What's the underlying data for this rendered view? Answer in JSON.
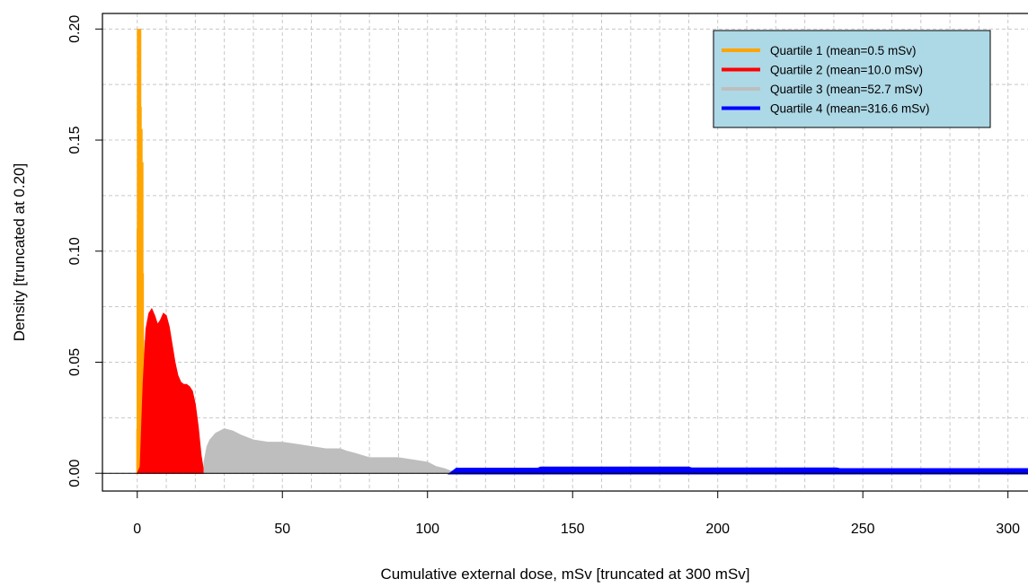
{
  "chart_data": {
    "type": "area",
    "xlabel": "Cumulative external dose, mSv [truncated at 300 mSv]",
    "ylabel": "Density [truncated at 0.20]",
    "xlim": [
      -12,
      310
    ],
    "ylim": [
      -0.008,
      0.207
    ],
    "x_ticks": [
      0,
      50,
      100,
      150,
      200,
      250,
      300
    ],
    "y_ticks": [
      0.0,
      0.05,
      0.1,
      0.15,
      0.2
    ],
    "x_tick_labels": [
      "0",
      "50",
      "100",
      "150",
      "200",
      "250",
      "300"
    ],
    "y_tick_labels": [
      "0.00",
      "0.05",
      "0.10",
      "0.15",
      "0.20"
    ],
    "grid": true,
    "grid_style": "dashed",
    "legend_position": "top-right",
    "legend_background": "#add8e6",
    "series": [
      {
        "name": "Quartile 1 (mean=0.5 mSv)",
        "color": "#ffa500",
        "style": "spike",
        "x": [
          0.0,
          0.1,
          0.2,
          0.3,
          0.45,
          0.6,
          0.75,
          0.9,
          1.05,
          1.2,
          1.35,
          1.5,
          1.65,
          1.8,
          1.95,
          2.1,
          2.3,
          2.5
        ],
        "y": [
          0.02,
          0.11,
          0.2,
          0.2,
          0.2,
          0.2,
          0.2,
          0.2,
          0.2,
          0.165,
          0.13,
          0.155,
          0.105,
          0.14,
          0.09,
          0.06,
          0.03,
          0.015
        ]
      },
      {
        "name": "Quartile 2 (mean=10.0 mSv)",
        "color": "#ff0000",
        "style": "area",
        "x": [
          0,
          1,
          2,
          3,
          4,
          5,
          6,
          7,
          8,
          9,
          10,
          11,
          12,
          13,
          14,
          15,
          16,
          17,
          18,
          19,
          20,
          21,
          22,
          23
        ],
        "y": [
          0.0,
          0.003,
          0.04,
          0.065,
          0.072,
          0.074,
          0.071,
          0.067,
          0.069,
          0.072,
          0.071,
          0.066,
          0.058,
          0.05,
          0.044,
          0.041,
          0.04,
          0.04,
          0.039,
          0.037,
          0.031,
          0.021,
          0.008,
          0.0
        ]
      },
      {
        "name": "Quartile 3 (mean=52.7 mSv)",
        "color": "#bebebe",
        "style": "area",
        "x": [
          23,
          24,
          25,
          27,
          30,
          33,
          36,
          40,
          45,
          50,
          55,
          60,
          65,
          70,
          72,
          75,
          80,
          85,
          90,
          95,
          100,
          103,
          106,
          108,
          110
        ],
        "y": [
          0.005,
          0.012,
          0.015,
          0.018,
          0.02,
          0.019,
          0.017,
          0.015,
          0.014,
          0.014,
          0.013,
          0.012,
          0.011,
          0.011,
          0.01,
          0.009,
          0.007,
          0.007,
          0.007,
          0.006,
          0.005,
          0.003,
          0.002,
          0.001,
          0.001
        ]
      },
      {
        "name": "Quartile 4 (mean=316.6 mSv)",
        "color": "#0000ff",
        "style": "area",
        "x": [
          108,
          110,
          138,
          139,
          190,
          191,
          241,
          242,
          310
        ],
        "y": [
          0.0,
          0.002,
          0.002,
          0.0025,
          0.0025,
          0.0021,
          0.0021,
          0.0018,
          0.0018
        ]
      }
    ]
  }
}
